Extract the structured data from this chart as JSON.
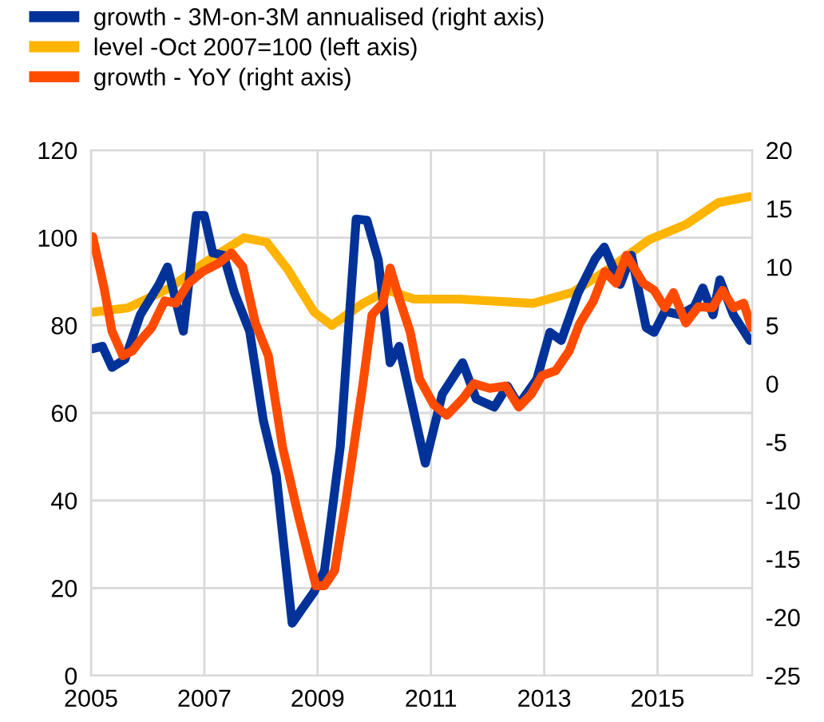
{
  "chart_data": {
    "type": "line",
    "legend": "top",
    "grid": true,
    "line_style": "solid",
    "marker": "none",
    "xlim": [
      2005,
      2016.67
    ],
    "xticks": [
      2005,
      2007,
      2009,
      2011,
      2013,
      2015
    ],
    "ylim": [
      0,
      120
    ],
    "yticks": [
      0,
      20,
      40,
      60,
      80,
      100,
      120
    ],
    "y2lim": [
      -25,
      20
    ],
    "y2ticks": [
      -25,
      -20,
      -15,
      -10,
      -5,
      0,
      5,
      10,
      15,
      20
    ],
    "series": [
      {
        "name": "growth - 3M-on-3M annualised (right axis)",
        "color": "#003299",
        "axis": "y2",
        "x": [
          2005.03,
          2005.2,
          2005.37,
          2005.6,
          2005.87,
          2006.2,
          2006.35,
          2006.63,
          2006.86,
          2007.0,
          2007.15,
          2007.34,
          2007.53,
          2007.8,
          2008.04,
          2008.27,
          2008.55,
          2008.94,
          2009.12,
          2009.23,
          2009.4,
          2009.68,
          2009.87,
          2010.07,
          2010.28,
          2010.44,
          2010.9,
          2011.2,
          2011.56,
          2011.8,
          2012.12,
          2012.35,
          2012.55,
          2012.87,
          2013.1,
          2013.3,
          2013.6,
          2013.9,
          2014.06,
          2014.34,
          2014.54,
          2014.8,
          2014.94,
          2015.13,
          2015.4,
          2015.65,
          2015.8,
          2015.98,
          2016.1,
          2016.34,
          2016.63
        ],
        "values": [
          3.0,
          3.2,
          1.4,
          2.1,
          5.9,
          8.5,
          10,
          4.5,
          14.4,
          14.4,
          11.2,
          11,
          7.8,
          4.5,
          -3.1,
          -7.8,
          -20.5,
          -17.8,
          -16,
          -11.9,
          -5.4,
          14.1,
          14,
          10.6,
          1.8,
          3.2,
          -6.8,
          -0.9,
          1.8,
          -1.3,
          -2.0,
          -0.2,
          -1.8,
          0.4,
          4.4,
          3.7,
          7.8,
          10.7,
          11.7,
          8.5,
          11,
          4.8,
          4.4,
          6.2,
          5.9,
          6.6,
          8.2,
          5.9,
          8.9,
          5.9,
          3.7
        ]
      },
      {
        "name": "level -Oct 2007=100 (left axis)",
        "color": "#ffb400",
        "axis": "y",
        "x": [
          2005.03,
          2005.65,
          2006.4,
          2006.97,
          2007.7,
          2008.1,
          2008.46,
          2008.94,
          2009.25,
          2009.8,
          2010.24,
          2010.7,
          2011.0,
          2011.5,
          2012.8,
          2013.5,
          2014.2,
          2014.86,
          2015.5,
          2016.07,
          2016.63
        ],
        "values": [
          83,
          84,
          88.6,
          94,
          100,
          99,
          93,
          83,
          80,
          85,
          88,
          86,
          86,
          86,
          85,
          87.5,
          93.4,
          99.6,
          103,
          108,
          109.4
        ]
      },
      {
        "name": "growth - YoY (right axis)",
        "color": "#ff4b00",
        "axis": "y2",
        "x": [
          2005.03,
          2005.23,
          2005.37,
          2005.56,
          2005.73,
          2005.87,
          2006.07,
          2006.3,
          2006.5,
          2006.72,
          2006.97,
          2007.25,
          2007.48,
          2007.68,
          2007.9,
          2008.13,
          2008.38,
          2008.66,
          2008.83,
          2008.97,
          2009.12,
          2009.3,
          2009.5,
          2009.8,
          2009.96,
          2010.15,
          2010.28,
          2010.44,
          2010.63,
          2010.8,
          2011.05,
          2011.28,
          2011.56,
          2011.76,
          2012.04,
          2012.32,
          2012.55,
          2012.77,
          2012.96,
          2013.2,
          2013.44,
          2013.62,
          2013.87,
          2014.07,
          2014.27,
          2014.45,
          2014.75,
          2014.94,
          2015.13,
          2015.28,
          2015.5,
          2015.72,
          2015.97,
          2016.15,
          2016.34,
          2016.52,
          2016.66
        ],
        "values": [
          12.6,
          8.2,
          4.5,
          2.4,
          2.8,
          3.7,
          4.8,
          7.1,
          6.9,
          8.6,
          9.6,
          10.3,
          11.2,
          10,
          5.2,
          2.4,
          -5.4,
          -11.3,
          -14.6,
          -17.3,
          -17.3,
          -16,
          -10,
          0,
          5.9,
          6.9,
          9.9,
          7.3,
          4.5,
          0.4,
          -1.8,
          -2.7,
          -1.3,
          0,
          -0.4,
          -0.2,
          -2.0,
          -0.9,
          0.7,
          1.1,
          2.8,
          5.1,
          7.1,
          9.6,
          8.6,
          11,
          8.6,
          8.0,
          6.5,
          7.8,
          5.2,
          6.6,
          6.5,
          8.0,
          6.5,
          6.9,
          4.8
        ]
      }
    ]
  }
}
